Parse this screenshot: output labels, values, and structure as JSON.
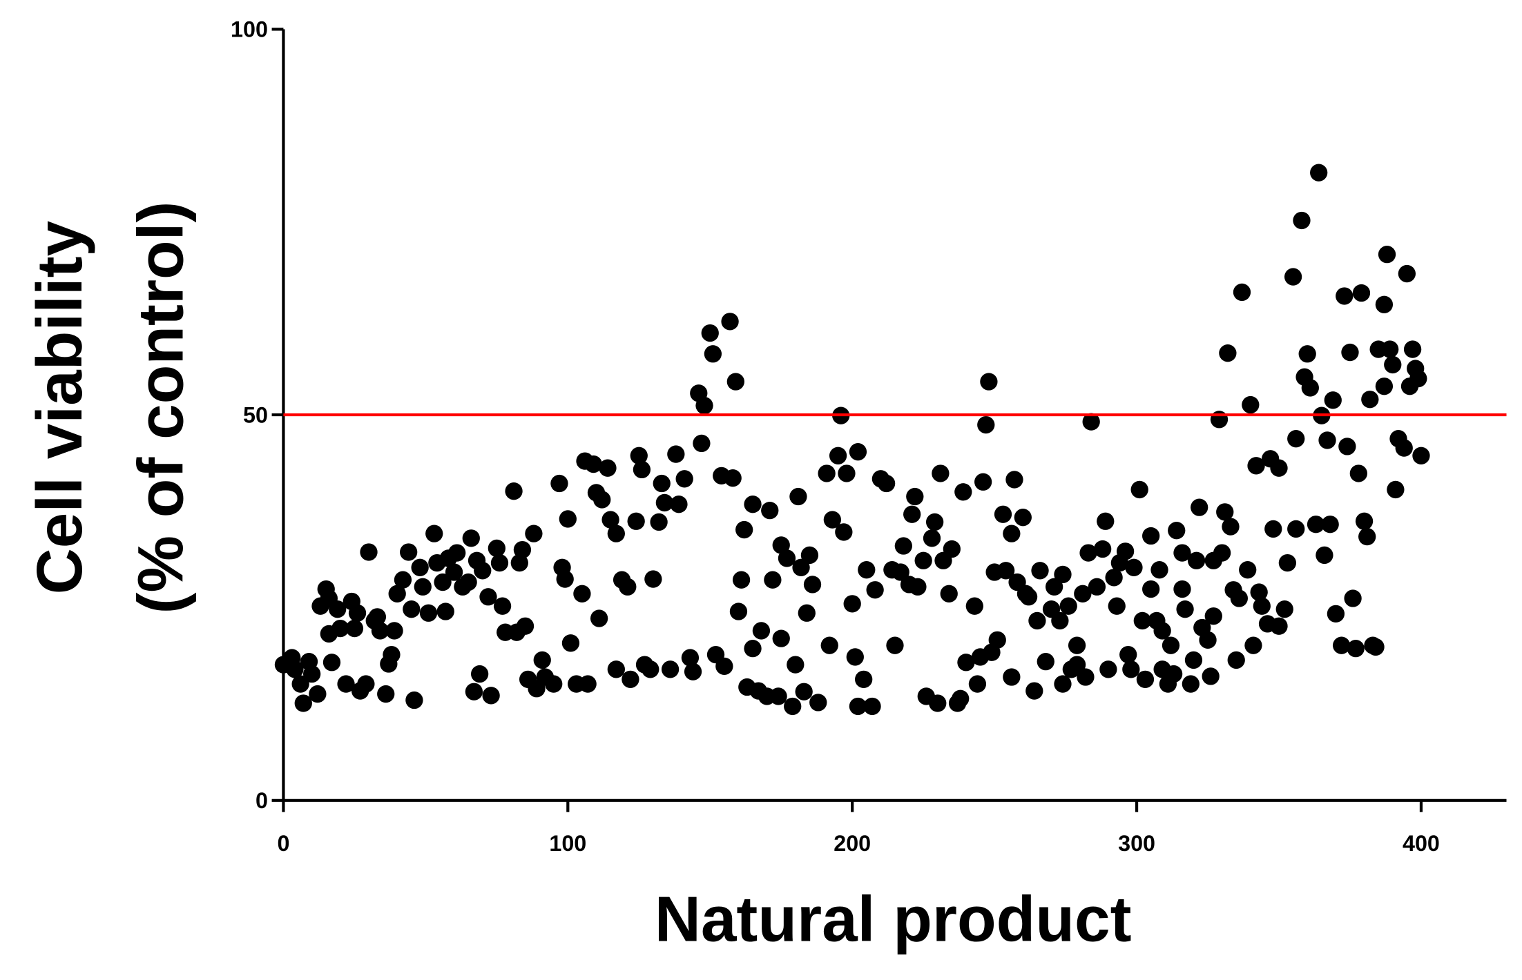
{
  "chart_data": {
    "type": "scatter",
    "xlabel": "Natural product",
    "ylabel": [
      "Cell viability",
      "(% of control)"
    ],
    "xlim": [
      0,
      430
    ],
    "ylim": [
      0,
      100
    ],
    "xticks": [
      0,
      100,
      200,
      300,
      400
    ],
    "yticks": [
      0,
      50,
      100
    ],
    "color": "#000000",
    "reference_line": 50,
    "reference_color": "#ff0000",
    "x": [
      0,
      3,
      4,
      6,
      7,
      9,
      10,
      12,
      13,
      15,
      16,
      17,
      16,
      19,
      20,
      22,
      24,
      25,
      26,
      27,
      29,
      30,
      32,
      33,
      34,
      36,
      37,
      38,
      39,
      40,
      42,
      44,
      45,
      46,
      48,
      49,
      51,
      53,
      54,
      56,
      57,
      58,
      60,
      61,
      63,
      65,
      66,
      68,
      67,
      69,
      70,
      72,
      73,
      75,
      76,
      77,
      78,
      81,
      82,
      83,
      84,
      85,
      86,
      88,
      89,
      91,
      92,
      95,
      97,
      98,
      99,
      100,
      101,
      103,
      105,
      107,
      106,
      109,
      110,
      111,
      112,
      114,
      115,
      117,
      117,
      119,
      121,
      122,
      124,
      125,
      126,
      127,
      129,
      130,
      132,
      133,
      134,
      136,
      138,
      139,
      141,
      143,
      144,
      146,
      147,
      148,
      150,
      151,
      152,
      154,
      155,
      157,
      158,
      159,
      160,
      161,
      162,
      163,
      165,
      165,
      167,
      168,
      170,
      171,
      172,
      174,
      175,
      175,
      177,
      179,
      180,
      181,
      182,
      184,
      185,
      186,
      183,
      188,
      191,
      192,
      193,
      195,
      196,
      197,
      198,
      200,
      201,
      202,
      202,
      204,
      205,
      207,
      208,
      210,
      212,
      214,
      215,
      217,
      218,
      220,
      221,
      222,
      223,
      225,
      226,
      228,
      229,
      230,
      231,
      232,
      234,
      235,
      237,
      238,
      239,
      240,
      243,
      244,
      245,
      246,
      247,
      248,
      249,
      250,
      251,
      253,
      254,
      256,
      256,
      257,
      258,
      260,
      261,
      262,
      264,
      265,
      266,
      268,
      270,
      271,
      273,
      274,
      274,
      276,
      277,
      279,
      279,
      281,
      282,
      283,
      284,
      286,
      288,
      289,
      290,
      292,
      293,
      294,
      296,
      297,
      298,
      299,
      301,
      302,
      303,
      305,
      305,
      307,
      308,
      309,
      309,
      311,
      312,
      313,
      314,
      316,
      316,
      317,
      319,
      320,
      321,
      322,
      323,
      325,
      326,
      327,
      327,
      329,
      330,
      331,
      332,
      333,
      334,
      335,
      336,
      337,
      339,
      340,
      341,
      342,
      343,
      344,
      346,
      347,
      348,
      350,
      350,
      352,
      353,
      355,
      356,
      356,
      358,
      359,
      360,
      361,
      363,
      364,
      365,
      366,
      367,
      368,
      369,
      370,
      372,
      373,
      374,
      375,
      376,
      377,
      378,
      379,
      380,
      381,
      382,
      383,
      384,
      385,
      387,
      387,
      388,
      389,
      390,
      391,
      392,
      394,
      395,
      396,
      397,
      398,
      399,
      400
    ],
    "values": [
      17.6,
      18.5,
      17,
      15.1,
      12.6,
      18,
      16.4,
      13.8,
      25.2,
      27.4,
      26.2,
      17.9,
      21.6,
      24.8,
      22.3,
      15.1,
      25.8,
      22.3,
      24.3,
      14.2,
      15.1,
      32.2,
      23.3,
      23.8,
      22,
      13.8,
      17.7,
      18.9,
      22,
      26.8,
      28.6,
      32.2,
      24.8,
      13,
      30.2,
      27.7,
      24.3,
      34.6,
      30.8,
      28.3,
      24.5,
      31.4,
      29.6,
      32.1,
      27.7,
      28.3,
      34,
      31.1,
      14.1,
      16.4,
      29.8,
      26.4,
      13.6,
      32.7,
      30.8,
      25.2,
      21.8,
      40.1,
      21.8,
      30.8,
      32.5,
      22.6,
      15.7,
      34.6,
      14.5,
      18.2,
      16,
      15.1,
      41.1,
      30.2,
      28.7,
      36.5,
      20.4,
      15.1,
      26.8,
      15.1,
      44,
      43.6,
      39.9,
      23.6,
      39,
      43.1,
      36.4,
      17,
      34.6,
      28.6,
      27.7,
      15.7,
      36.2,
      44.7,
      42.9,
      17.6,
      17,
      28.7,
      36.1,
      41.1,
      38.6,
      17,
      44.9,
      38.4,
      41.7,
      18.5,
      16.7,
      52.8,
      46.3,
      51.2,
      60.6,
      57.9,
      18.9,
      42.1,
      17.4,
      62.1,
      41.8,
      54.3,
      24.5,
      28.6,
      35.1,
      14.7,
      19.7,
      38.4,
      14.2,
      22,
      13.5,
      37.6,
      28.6,
      13.5,
      21,
      33.1,
      31.4,
      12.2,
      17.6,
      39.4,
      30.2,
      24.3,
      31.8,
      28,
      14.1,
      12.7,
      42.4,
      20.1,
      36.4,
      44.7,
      49.9,
      34.8,
      42.4,
      25.5,
      18.6,
      45.2,
      12.2,
      15.7,
      29.9,
      12.2,
      27.3,
      41.7,
      41.1,
      29.9,
      20.1,
      29.6,
      33,
      28,
      37.1,
      39.4,
      27.7,
      31.1,
      13.5,
      34,
      36.1,
      12.6,
      42.4,
      31.1,
      26.8,
      32.6,
      12.6,
      13.2,
      40,
      17.9,
      25.2,
      15.1,
      18.6,
      41.3,
      48.7,
      54.3,
      19.2,
      29.6,
      20.8,
      37.1,
      29.8,
      34.6,
      16,
      41.6,
      28.3,
      36.7,
      26.8,
      26.4,
      14.2,
      23.3,
      29.8,
      18,
      24.8,
      27.7,
      23.3,
      29.3,
      15.1,
      25.2,
      17,
      20.1,
      17.6,
      26.8,
      16,
      32.1,
      49.1,
      27.7,
      32.6,
      36.2,
      17,
      28.9,
      25.2,
      30.8,
      32.3,
      18.9,
      17,
      30.2,
      40.3,
      23.3,
      15.7,
      34.3,
      27.4,
      23.3,
      29.9,
      17,
      22,
      15.1,
      20.1,
      16.4,
      35,
      27.4,
      32.1,
      24.8,
      15.1,
      18.2,
      31.1,
      38,
      22.4,
      20.8,
      16.1,
      31.1,
      23.9,
      49.4,
      32.1,
      37.4,
      58,
      35.5,
      27.3,
      18.2,
      26.2,
      65.9,
      29.9,
      51.3,
      20.1,
      43.4,
      27,
      25.2,
      22.9,
      44.3,
      35.2,
      43.1,
      22.6,
      24.8,
      30.8,
      67.9,
      46.9,
      35.2,
      75.2,
      54.9,
      57.9,
      53.5,
      35.8,
      81.4,
      49.9,
      31.8,
      46.7,
      35.8,
      51.9,
      24.2,
      20.1,
      65.4,
      45.9,
      58.1,
      26.2,
      19.7,
      42.4,
      65.8,
      36.2,
      34.2,
      52,
      20.1,
      19.9,
      58.5,
      64.3,
      53.7,
      70.8,
      58.5,
      56.5,
      40.3,
      46.9,
      45.7,
      68.3,
      53.7,
      58.5,
      56,
      54.7,
      44.7
    ]
  }
}
